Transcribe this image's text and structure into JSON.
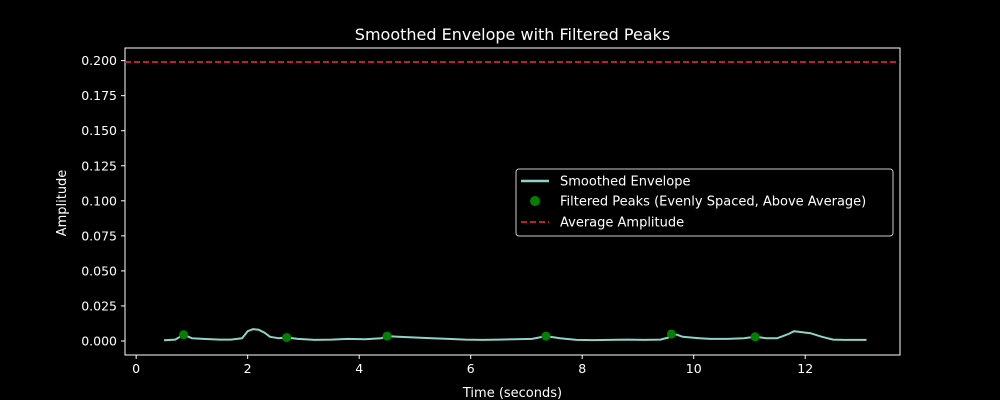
{
  "chart_data": {
    "type": "line",
    "title": "Smoothed Envelope with Filtered Peaks",
    "xlabel": "Time (seconds)",
    "ylabel": "Amplitude",
    "xlim": [
      -0.2,
      13.7
    ],
    "ylim": [
      -0.01,
      0.209
    ],
    "xticks": [
      0,
      2,
      4,
      6,
      8,
      10,
      12
    ],
    "xtick_labels": [
      "0",
      "2",
      "4",
      "6",
      "8",
      "10",
      "12"
    ],
    "yticks": [
      0.0,
      0.025,
      0.05,
      0.075,
      0.1,
      0.125,
      0.15,
      0.175,
      0.2
    ],
    "ytick_labels": [
      "0.000",
      "0.025",
      "0.050",
      "0.075",
      "0.100",
      "0.125",
      "0.150",
      "0.175",
      "0.200"
    ],
    "grid": false,
    "legend_position": "center-right",
    "series": [
      {
        "name": "Smoothed Envelope",
        "kind": "line",
        "color": "#8dd3c7",
        "x": [
          0.5,
          0.7,
          0.85,
          1.0,
          1.2,
          1.5,
          1.7,
          1.9,
          2.0,
          2.1,
          2.2,
          2.3,
          2.4,
          2.55,
          2.7,
          2.9,
          3.2,
          3.5,
          3.8,
          4.1,
          4.4,
          4.5,
          4.7,
          5.0,
          5.3,
          5.6,
          5.9,
          6.2,
          6.5,
          6.8,
          7.1,
          7.35,
          7.6,
          7.9,
          8.2,
          8.5,
          8.8,
          9.1,
          9.4,
          9.55,
          9.6,
          9.7,
          9.8,
          9.95,
          10.1,
          10.3,
          10.6,
          10.9,
          11.1,
          11.3,
          11.5,
          11.7,
          11.8,
          11.9,
          12.0,
          12.1,
          12.3,
          12.5,
          12.7,
          12.9,
          13.1
        ],
        "y": [
          0.0005,
          0.001,
          0.0045,
          0.002,
          0.0015,
          0.001,
          0.001,
          0.002,
          0.007,
          0.0085,
          0.008,
          0.006,
          0.003,
          0.002,
          0.0025,
          0.0015,
          0.0008,
          0.001,
          0.0015,
          0.0012,
          0.002,
          0.0035,
          0.003,
          0.0025,
          0.002,
          0.0015,
          0.001,
          0.0008,
          0.001,
          0.0012,
          0.0015,
          0.0035,
          0.002,
          0.0008,
          0.0006,
          0.0008,
          0.001,
          0.0008,
          0.001,
          0.0025,
          0.005,
          0.0045,
          0.003,
          0.0025,
          0.002,
          0.0015,
          0.0015,
          0.002,
          0.003,
          0.002,
          0.002,
          0.005,
          0.007,
          0.0065,
          0.006,
          0.0055,
          0.003,
          0.001,
          0.0008,
          0.0008,
          0.0008
        ]
      },
      {
        "name": "Filtered Peaks (Evenly Spaced, Above Average)",
        "kind": "scatter",
        "color": "#008000",
        "x": [
          0.85,
          2.7,
          4.5,
          7.35,
          9.6,
          11.1
        ],
        "y": [
          0.0045,
          0.0025,
          0.0035,
          0.0035,
          0.005,
          0.003
        ]
      },
      {
        "name": "Average Amplitude",
        "kind": "hline",
        "color": "#d62728",
        "y": 0.199
      }
    ]
  }
}
